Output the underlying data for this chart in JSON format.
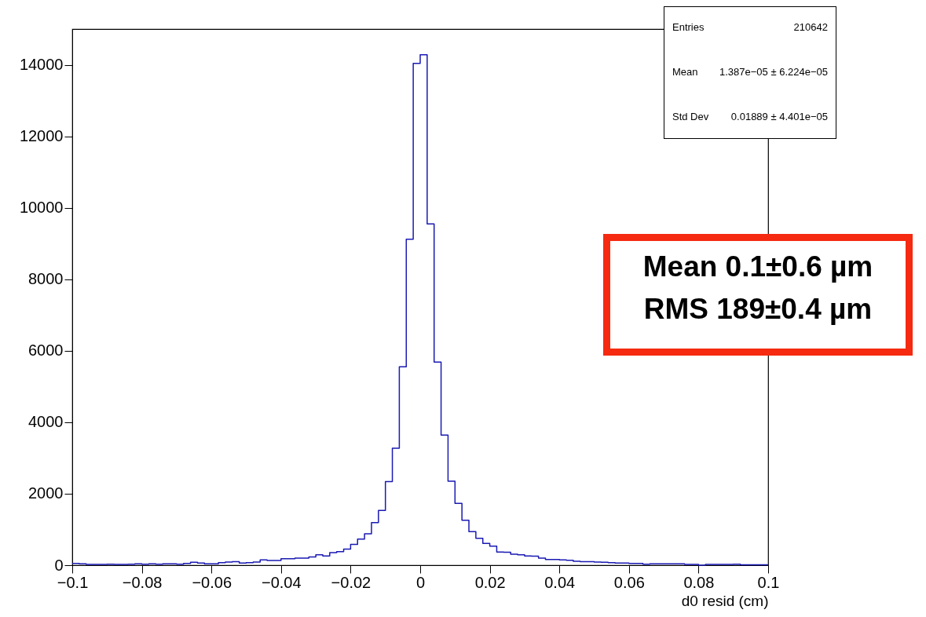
{
  "chart_data": {
    "type": "histogram",
    "xlabel": "d0 resid (cm)",
    "bins": [
      -0.1,
      -0.098,
      -0.096,
      -0.094,
      -0.092,
      -0.09,
      -0.088,
      -0.086,
      -0.084,
      -0.082,
      -0.08,
      -0.078,
      -0.076,
      -0.074,
      -0.072,
      -0.07,
      -0.068,
      -0.066,
      -0.064,
      -0.062,
      -0.06,
      -0.058,
      -0.056,
      -0.054,
      -0.052,
      -0.05,
      -0.048,
      -0.046,
      -0.044,
      -0.042,
      -0.04,
      -0.038,
      -0.036,
      -0.034,
      -0.032,
      -0.03,
      -0.028,
      -0.026,
      -0.024,
      -0.022,
      -0.02,
      -0.018,
      -0.016,
      -0.014,
      -0.012,
      -0.01,
      -0.008,
      -0.006,
      -0.004,
      -0.002,
      0,
      0.002,
      0.004,
      0.006,
      0.008,
      0.01,
      0.012,
      0.014,
      0.016,
      0.018,
      0.02,
      0.022,
      0.024,
      0.026,
      0.028,
      0.03,
      0.032,
      0.034,
      0.036,
      0.038,
      0.04,
      0.042,
      0.044,
      0.046,
      0.048,
      0.05,
      0.052,
      0.054,
      0.056,
      0.058,
      0.06,
      0.062,
      0.064,
      0.066,
      0.068,
      0.07,
      0.072,
      0.074,
      0.076,
      0.078,
      0.08,
      0.082,
      0.084,
      0.086,
      0.088,
      0.09,
      0.092,
      0.094,
      0.096,
      0.098,
      0.1
    ],
    "values": [
      50,
      40,
      20,
      20,
      20,
      30,
      20,
      20,
      30,
      40,
      30,
      40,
      30,
      40,
      40,
      30,
      50,
      80,
      60,
      40,
      40,
      70,
      90,
      100,
      60,
      70,
      90,
      150,
      130,
      130,
      180,
      180,
      200,
      200,
      230,
      290,
      260,
      350,
      380,
      450,
      580,
      730,
      880,
      1190,
      1530,
      2340,
      3270,
      5550,
      9120,
      14040,
      14280,
      9550,
      5680,
      3640,
      2350,
      1730,
      1260,
      940,
      750,
      610,
      530,
      370,
      360,
      310,
      290,
      260,
      250,
      200,
      160,
      160,
      150,
      140,
      110,
      100,
      100,
      90,
      80,
      70,
      60,
      60,
      50,
      50,
      30,
      40,
      40,
      40,
      40,
      40,
      20,
      20,
      0,
      20,
      20,
      20,
      20,
      30,
      10,
      10,
      10,
      10
    ],
    "color": "#1a1ab3",
    "xlim": [
      -0.1,
      0.1
    ],
    "xticks": [
      -0.1,
      -0.08,
      -0.06,
      -0.04,
      -0.02,
      0,
      0.02,
      0.04,
      0.06,
      0.08,
      0.1
    ],
    "ylim": [
      0,
      15000
    ],
    "yticks": [
      0,
      2000,
      4000,
      6000,
      8000,
      10000,
      12000,
      14000
    ],
    "grid": false,
    "annotations": [
      "Entries 210642",
      "Mean 1.387e−05 ± 6.224e−05",
      "Std Dev 0.01889 ± 4.401e−05",
      "Mean 0.1±0.6 µm",
      "RMS 189±0.4 µm"
    ]
  }
}
